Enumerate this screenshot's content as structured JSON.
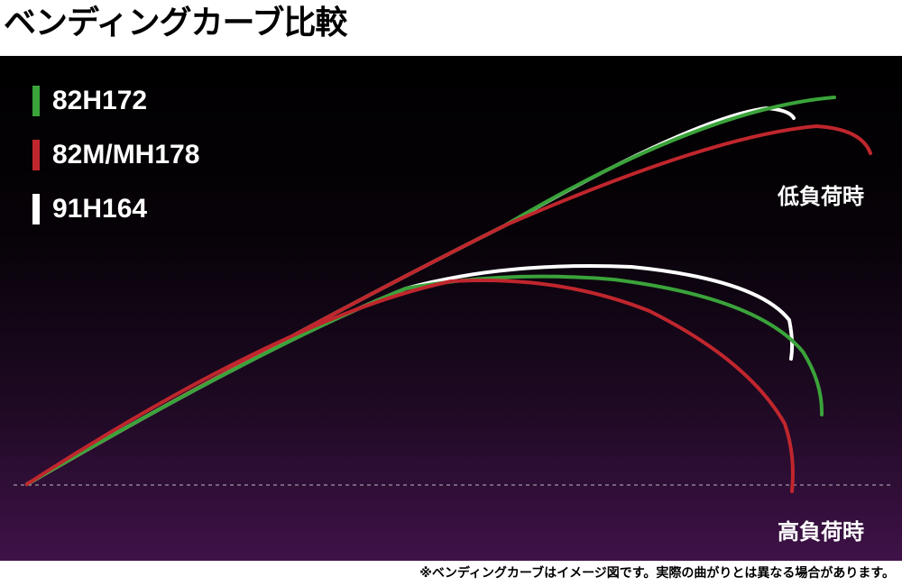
{
  "title": "ベンディングカーブ比較",
  "legend": [
    {
      "label": "82H172",
      "color": "#3aa33a"
    },
    {
      "label": "82M/MH178",
      "color": "#c0262d"
    },
    {
      "label": "91H164",
      "color": "#ffffff"
    }
  ],
  "annotations": {
    "low_load": "低負荷時",
    "high_load": "高負荷時"
  },
  "footnote": "※ベンディングカーブはイメージ図です。実際の曲がりとは異なる場合があります。",
  "colors": {
    "green": "#3aa33a",
    "red": "#c0262d",
    "white": "#ffffff",
    "baseline": "#bbbbbb"
  }
}
